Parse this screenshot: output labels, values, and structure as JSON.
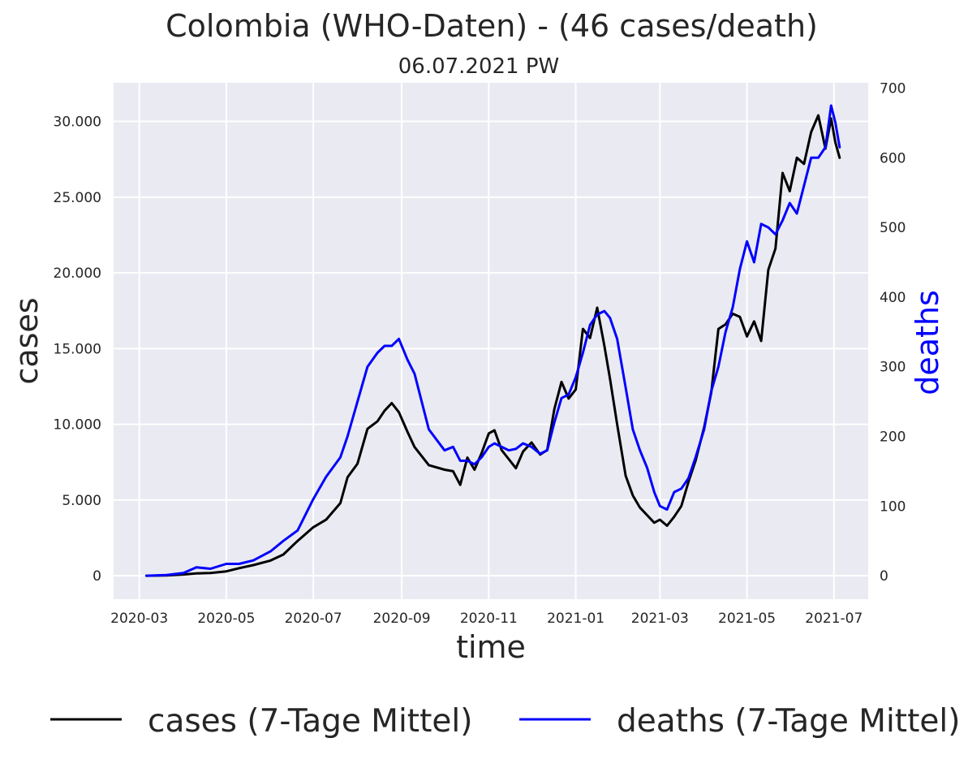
{
  "chart_data": {
    "type": "line",
    "title": "Colombia (WHO-Daten) - (46 cases/death)",
    "subtitle": "06.07.2021 PW",
    "xlabel": "time",
    "ylabel": "cases",
    "y2label": "deaths",
    "x_ticks": [
      "2020-03",
      "2020-05",
      "2020-07",
      "2020-09",
      "2020-11",
      "2021-01",
      "2021-03",
      "2021-05",
      "2021-07"
    ],
    "x_range": [
      "2020-02-12",
      "2021-07-25"
    ],
    "y_ticks": [
      0,
      5000,
      10000,
      15000,
      20000,
      25000,
      30000
    ],
    "y_tick_labels": [
      "0",
      "5.000",
      "10.000",
      "15.000",
      "20.000",
      "25.000",
      "30.000"
    ],
    "ylim": [
      -1550,
      32550
    ],
    "y2_ticks": [
      0,
      100,
      200,
      300,
      400,
      500,
      600,
      700
    ],
    "y2lim": [
      -33.7,
      707.6
    ],
    "grid": true,
    "legend": "bottom",
    "colors": {
      "background": "#eaeaf2",
      "grid": "#ffffff",
      "cases": "#000000",
      "deaths": "#0000ff"
    },
    "series": [
      {
        "name": "cases (7-Tage Mittel)",
        "axis": "left",
        "color": "#000000",
        "x": [
          "2020-03-06",
          "2020-03-20",
          "2020-04-01",
          "2020-04-10",
          "2020-04-20",
          "2020-05-01",
          "2020-05-10",
          "2020-05-20",
          "2020-06-01",
          "2020-06-10",
          "2020-06-20",
          "2020-07-01",
          "2020-07-10",
          "2020-07-20",
          "2020-07-25",
          "2020-08-01",
          "2020-08-08",
          "2020-08-15",
          "2020-08-20",
          "2020-08-25",
          "2020-08-30",
          "2020-09-05",
          "2020-09-10",
          "2020-09-20",
          "2020-10-01",
          "2020-10-07",
          "2020-10-12",
          "2020-10-17",
          "2020-10-22",
          "2020-10-27",
          "2020-11-01",
          "2020-11-05",
          "2020-11-10",
          "2020-11-15",
          "2020-11-20",
          "2020-11-25",
          "2020-12-01",
          "2020-12-07",
          "2020-12-12",
          "2020-12-17",
          "2020-12-22",
          "2020-12-27",
          "2021-01-01",
          "2021-01-06",
          "2021-01-11",
          "2021-01-16",
          "2021-01-21",
          "2021-01-25",
          "2021-01-30",
          "2021-02-05",
          "2021-02-10",
          "2021-02-15",
          "2021-02-20",
          "2021-02-25",
          "2021-03-01",
          "2021-03-06",
          "2021-03-11",
          "2021-03-16",
          "2021-03-21",
          "2021-03-26",
          "2021-04-01",
          "2021-04-06",
          "2021-04-11",
          "2021-04-16",
          "2021-04-21",
          "2021-04-26",
          "2021-05-01",
          "2021-05-06",
          "2021-05-11",
          "2021-05-16",
          "2021-05-21",
          "2021-05-26",
          "2021-05-31",
          "2021-06-05",
          "2021-06-10",
          "2021-06-15",
          "2021-06-20",
          "2021-06-25",
          "2021-06-29",
          "2021-07-02",
          "2021-07-05"
        ],
        "values": [
          0,
          20,
          80,
          150,
          180,
          290,
          500,
          700,
          1000,
          1400,
          2300,
          3200,
          3700,
          4800,
          6500,
          7400,
          9700,
          10200,
          10900,
          11400,
          10800,
          9500,
          8500,
          7300,
          7000,
          6900,
          6000,
          7800,
          7000,
          8100,
          9400,
          9600,
          8300,
          7700,
          7100,
          8200,
          8800,
          8000,
          8300,
          11000,
          12800,
          11700,
          12300,
          16300,
          15700,
          17700,
          15200,
          13000,
          10000,
          6600,
          5300,
          4500,
          4000,
          3500,
          3700,
          3300,
          3900,
          4600,
          6200,
          7600,
          9800,
          12100,
          16300,
          16600,
          17300,
          17100,
          15800,
          16800,
          15500,
          20200,
          21600,
          26600,
          25400,
          27600,
          27200,
          29300,
          30400,
          28200,
          30200,
          28600,
          27600
        ]
      },
      {
        "name": "deaths (7-Tage Mittel)",
        "axis": "right",
        "color": "#0000ff",
        "x": [
          "2020-03-06",
          "2020-03-20",
          "2020-04-01",
          "2020-04-10",
          "2020-04-20",
          "2020-05-01",
          "2020-05-10",
          "2020-05-20",
          "2020-06-01",
          "2020-06-10",
          "2020-06-20",
          "2020-07-01",
          "2020-07-10",
          "2020-07-20",
          "2020-07-25",
          "2020-08-01",
          "2020-08-08",
          "2020-08-15",
          "2020-08-20",
          "2020-08-25",
          "2020-08-30",
          "2020-09-05",
          "2020-09-10",
          "2020-09-20",
          "2020-10-01",
          "2020-10-07",
          "2020-10-12",
          "2020-10-17",
          "2020-10-22",
          "2020-10-27",
          "2020-11-01",
          "2020-11-05",
          "2020-11-10",
          "2020-11-15",
          "2020-11-20",
          "2020-11-25",
          "2020-12-01",
          "2020-12-07",
          "2020-12-12",
          "2020-12-17",
          "2020-12-22",
          "2020-12-27",
          "2021-01-01",
          "2021-01-06",
          "2021-01-11",
          "2021-01-16",
          "2021-01-21",
          "2021-01-25",
          "2021-01-30",
          "2021-02-05",
          "2021-02-10",
          "2021-02-15",
          "2021-02-20",
          "2021-02-25",
          "2021-03-01",
          "2021-03-06",
          "2021-03-11",
          "2021-03-16",
          "2021-03-21",
          "2021-03-26",
          "2021-04-01",
          "2021-04-06",
          "2021-04-11",
          "2021-04-16",
          "2021-04-21",
          "2021-04-26",
          "2021-05-01",
          "2021-05-06",
          "2021-05-11",
          "2021-05-16",
          "2021-05-21",
          "2021-05-26",
          "2021-05-31",
          "2021-06-05",
          "2021-06-10",
          "2021-06-15",
          "2021-06-20",
          "2021-06-25",
          "2021-06-29",
          "2021-07-02",
          "2021-07-05"
        ],
        "values": [
          0,
          1,
          4,
          12,
          10,
          17,
          17,
          22,
          35,
          50,
          65,
          110,
          142,
          170,
          200,
          250,
          300,
          320,
          330,
          330,
          340,
          310,
          290,
          210,
          180,
          185,
          165,
          165,
          160,
          170,
          185,
          190,
          185,
          180,
          182,
          190,
          185,
          175,
          180,
          220,
          255,
          260,
          285,
          320,
          360,
          375,
          380,
          370,
          340,
          270,
          210,
          180,
          155,
          120,
          100,
          95,
          120,
          125,
          140,
          170,
          210,
          265,
          300,
          350,
          385,
          440,
          480,
          450,
          505,
          500,
          490,
          510,
          535,
          520,
          560,
          600,
          600,
          615,
          675,
          650,
          615
        ]
      }
    ]
  }
}
